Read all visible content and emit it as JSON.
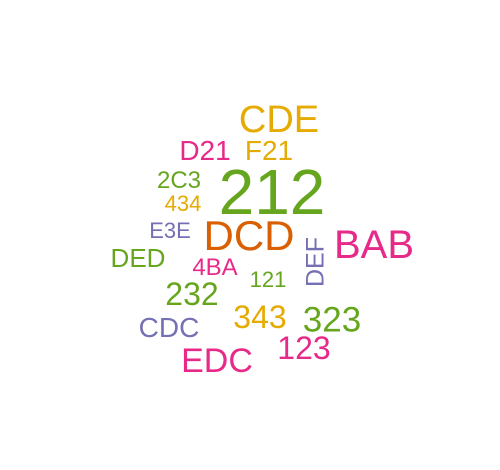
{
  "palette": {
    "orange": "#d95f02",
    "green": "#66a61e",
    "magenta": "#e7298a",
    "gold": "#e6ab02",
    "purple": "#7570b3"
  },
  "words": [
    {
      "text": "212",
      "color": "#66a61e",
      "orientation": "horizontal"
    },
    {
      "text": "DCD",
      "color": "#d95f02",
      "orientation": "horizontal"
    },
    {
      "text": "BAB",
      "color": "#e7298a",
      "orientation": "horizontal"
    },
    {
      "text": "CDE",
      "color": "#e6ab02",
      "orientation": "horizontal"
    },
    {
      "text": "EDC",
      "color": "#e7298a",
      "orientation": "horizontal"
    },
    {
      "text": "323",
      "color": "#66a61e",
      "orientation": "horizontal"
    },
    {
      "text": "232",
      "color": "#66a61e",
      "orientation": "horizontal"
    },
    {
      "text": "343",
      "color": "#e6ab02",
      "orientation": "horizontal"
    },
    {
      "text": "123",
      "color": "#e7298a",
      "orientation": "horizontal"
    },
    {
      "text": "CDC",
      "color": "#7570b3",
      "orientation": "horizontal"
    },
    {
      "text": "D21",
      "color": "#e7298a",
      "orientation": "horizontal"
    },
    {
      "text": "F21",
      "color": "#e6ab02",
      "orientation": "horizontal"
    },
    {
      "text": "DED",
      "color": "#66a61e",
      "orientation": "horizontal"
    },
    {
      "text": "2C3",
      "color": "#66a61e",
      "orientation": "horizontal"
    },
    {
      "text": "434",
      "color": "#e6ab02",
      "orientation": "horizontal"
    },
    {
      "text": "E3E",
      "color": "#7570b3",
      "orientation": "horizontal"
    },
    {
      "text": "4BA",
      "color": "#e7298a",
      "orientation": "horizontal"
    },
    {
      "text": "121",
      "color": "#66a61e",
      "orientation": "horizontal"
    },
    {
      "text": "DEF",
      "color": "#7570b3",
      "orientation": "vertical"
    }
  ]
}
